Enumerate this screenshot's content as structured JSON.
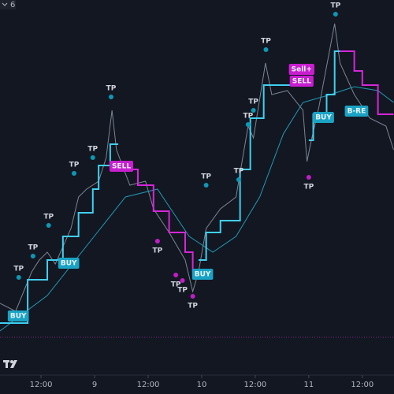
{
  "chart_data": {
    "type": "line",
    "xlim": [
      2.8,
      91.1
    ],
    "ylim": [
      0,
      86
    ],
    "xticks": [
      {
        "value": 12,
        "label": "12:00"
      },
      {
        "value": 24,
        "label": "9"
      },
      {
        "value": 36,
        "label": "12:00"
      },
      {
        "value": 48,
        "label": "10"
      },
      {
        "value": 60,
        "label": "12:00"
      },
      {
        "value": 72,
        "label": "11"
      },
      {
        "value": 84,
        "label": "12:00"
      }
    ],
    "interval": "6",
    "series": [
      {
        "style": "line",
        "color": "#7c8593",
        "x": [
          2.8,
          6.3,
          8.1,
          9.9,
          11.6,
          13.4,
          15.2,
          18.7,
          20.4,
          22.2,
          24.9,
          26.6,
          27.9,
          28.9,
          31.9,
          35.4,
          37.2,
          40.7,
          44.3,
          46.0,
          47.3,
          49.0,
          52.2,
          55.7,
          58.4,
          59.6,
          62.3,
          63.7,
          67.2,
          70.7,
          71.6,
          72.5,
          74.3,
          77.8,
          79.0,
          82.2,
          85.7,
          89.3,
          91.0
        ],
        "values": [
          9,
          7,
          12,
          17,
          20,
          22,
          19,
          28,
          36,
          38,
          40,
          46,
          58,
          48,
          39,
          40,
          33,
          27,
          20,
          12,
          17,
          28,
          33,
          36,
          54,
          51,
          70,
          62,
          63,
          58,
          45,
          50,
          59,
          80,
          70,
          62,
          56,
          54,
          48
        ]
      },
      {
        "style": "line",
        "color": "#1f9bb5",
        "x": [
          2.8,
          13.4,
          23.9,
          30.9,
          38.1,
          45.2,
          50.5,
          55.7,
          61.0,
          66.3,
          70.7,
          76.9,
          82.2,
          87.5,
          91.0
        ],
        "values": [
          2,
          11,
          26,
          36,
          38,
          26,
          22,
          26,
          36,
          52,
          60,
          62,
          64,
          63,
          60
        ]
      },
      {
        "style": "step",
        "color": "#3fd0f0",
        "x": [
          2.8,
          9.0,
          13.4,
          16.9,
          20.4,
          23.6,
          24.9,
          27.5,
          29.3
        ],
        "values": [
          4,
          15,
          20,
          26,
          32,
          38,
          44,
          49.4,
          49.4
        ]
      },
      {
        "style": "step",
        "color": "#d526d8",
        "x": [
          29.3,
          33.7,
          37.2,
          40.7,
          44.3,
          46.0,
          47.3
        ],
        "values": [
          43,
          39,
          32.4,
          27,
          22,
          17,
          17
        ]
      },
      {
        "style": "step",
        "color": "#3fd0f0",
        "x": [
          47.3,
          49.0,
          52.2,
          56.6,
          58.9,
          61.9,
          68.4
        ],
        "values": [
          20,
          27,
          30,
          43,
          56,
          64.4,
          64.4
        ]
      },
      {
        "style": "step",
        "color": "#d526d8",
        "x": [
          68.4,
          72.0
        ],
        "values": [
          64.4,
          64.4
        ]
      },
      {
        "style": "step",
        "color": "#3fd0f0",
        "x": [
          72.0,
          73.0,
          76.0,
          77.8,
          79.0
        ],
        "values": [
          50.4,
          57,
          62,
          73,
          73
        ]
      },
      {
        "style": "step",
        "color": "#d526d8",
        "x": [
          79.0,
          82.2,
          84.0,
          87.5,
          91.0
        ],
        "values": [
          73,
          68,
          64.4,
          57,
          57
        ]
      }
    ],
    "annotations": [
      {
        "text": "TP",
        "x": 7.0,
        "y": 15.6,
        "shape": "dot",
        "position": "above",
        "color": "#0d98b4"
      },
      {
        "text": "TP",
        "x": 10.2,
        "y": 21,
        "shape": "dot",
        "position": "above",
        "color": "#0d98b4"
      },
      {
        "text": "TP",
        "x": 13.7,
        "y": 28.8,
        "shape": "dot",
        "position": "above",
        "color": "#0d98b4"
      },
      {
        "text": "TP",
        "x": 19.4,
        "y": 42,
        "shape": "dot",
        "position": "above",
        "color": "#0d98b4"
      },
      {
        "text": "TP",
        "x": 23.6,
        "y": 46,
        "shape": "dot",
        "position": "above",
        "color": "#0d98b4"
      },
      {
        "text": "TP",
        "x": 27.7,
        "y": 61.4,
        "shape": "dot",
        "position": "above",
        "color": "#0d98b4"
      },
      {
        "text": "TP",
        "x": 49.0,
        "y": 39,
        "shape": "dot",
        "position": "above",
        "color": "#0d98b4"
      },
      {
        "text": "TP",
        "x": 56.3,
        "y": 40.4,
        "shape": "dot",
        "position": "above",
        "color": "#0d98b4"
      },
      {
        "text": "TP",
        "x": 58.4,
        "y": 54.4,
        "shape": "dot",
        "position": "above",
        "color": "#0d98b4"
      },
      {
        "text": "TP",
        "x": 59.6,
        "y": 58,
        "shape": "dot",
        "position": "above",
        "color": "#0d98b4"
      },
      {
        "text": "TP",
        "x": 62.4,
        "y": 73.4,
        "shape": "dot",
        "position": "above",
        "color": "#0d98b4"
      },
      {
        "text": "TP",
        "x": 78.0,
        "y": 82.4,
        "shape": "dot",
        "position": "above",
        "color": "#0d98b4"
      },
      {
        "text": "TP",
        "x": 38.1,
        "y": 24.8,
        "shape": "dot",
        "position": "below",
        "color": "#c21cc8"
      },
      {
        "text": "TP",
        "x": 42.2,
        "y": 16.2,
        "shape": "dot",
        "position": "below",
        "color": "#c21cc8"
      },
      {
        "text": "TP",
        "x": 43.7,
        "y": 14.8,
        "shape": "dot",
        "position": "below",
        "color": "#c21cc8"
      },
      {
        "text": "TP",
        "x": 46.0,
        "y": 10.8,
        "shape": "dot",
        "position": "below",
        "color": "#c21cc8"
      },
      {
        "text": "TP",
        "x": 72.0,
        "y": 41,
        "shape": "dot",
        "position": "below",
        "color": "#c21cc8"
      },
      {
        "text": "BUY",
        "x": 6.9,
        "y": 5.8,
        "shape": "box",
        "color": "#1aa3c4"
      },
      {
        "text": "BUY",
        "x": 18.2,
        "y": 19.2,
        "shape": "box",
        "color": "#1aa3c4"
      },
      {
        "text": "SELL",
        "x": 30.0,
        "y": 43.8,
        "shape": "box",
        "color": "#c81ed0"
      },
      {
        "text": "BUY",
        "x": 48.2,
        "y": 16.4,
        "shape": "box",
        "color": "#1aa3c4"
      },
      {
        "text": "Sell+",
        "x": 70.4,
        "y": 68.4,
        "shape": "box",
        "color": "#c81ed0"
      },
      {
        "text": "SELL",
        "x": 70.4,
        "y": 65.4,
        "shape": "box",
        "color": "#c81ed0"
      },
      {
        "text": "BUY",
        "x": 75.3,
        "y": 56.2,
        "shape": "box",
        "color": "#1aa3c4"
      },
      {
        "text": "B-RE",
        "x": 82.7,
        "y": 57.8,
        "shape": "box",
        "color": "#1aa3c4"
      }
    ]
  }
}
